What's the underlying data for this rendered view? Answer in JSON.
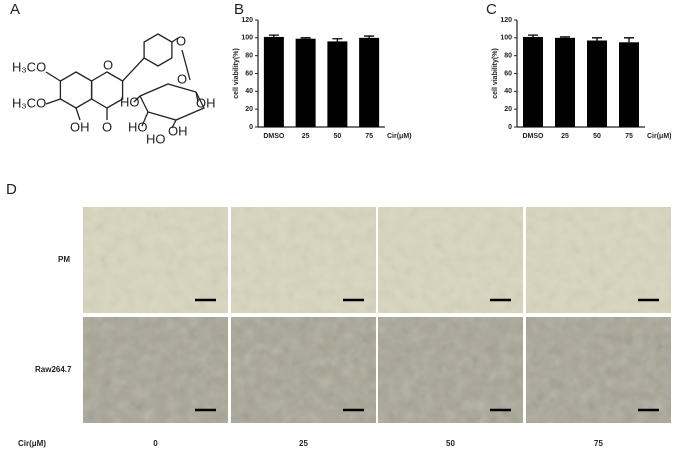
{
  "panel_labels": [
    "A",
    "B",
    "C",
    "D"
  ],
  "structure": {
    "labels": [
      "H₃CO",
      "H₃CO",
      "OH",
      "O",
      "O",
      "O",
      "O",
      "HO",
      "OH",
      "HO",
      "HO",
      "OH"
    ]
  },
  "micrographs": {
    "axis_label": "Cir(μM)",
    "columns": [
      "0",
      "25",
      "50",
      "75"
    ],
    "rows": [
      "PM",
      "Raw264.7"
    ]
  },
  "chart_data": [
    {
      "type": "bar",
      "categories": [
        "DMSO",
        "25",
        "50",
        "75"
      ],
      "values": [
        101,
        99,
        96,
        100
      ],
      "errors": [
        2,
        1,
        3,
        2
      ],
      "color": "#000000",
      "ylim": [
        0,
        120
      ],
      "yticks": [
        0,
        20,
        40,
        60,
        80,
        100,
        120
      ],
      "y_label": "cell viability(%)",
      "x_label": "Cir(μM)"
    },
    {
      "type": "bar",
      "categories": [
        "DMSO",
        "25",
        "50",
        "75"
      ],
      "values": [
        101,
        100,
        97,
        95
      ],
      "errors": [
        2,
        1,
        3,
        5
      ],
      "color": "#000000",
      "ylim": [
        0,
        120
      ],
      "yticks": [
        0,
        20,
        40,
        60,
        80,
        100,
        120
      ],
      "y_label": "cell viability(%)",
      "x_label": "Cir(μM)"
    }
  ]
}
